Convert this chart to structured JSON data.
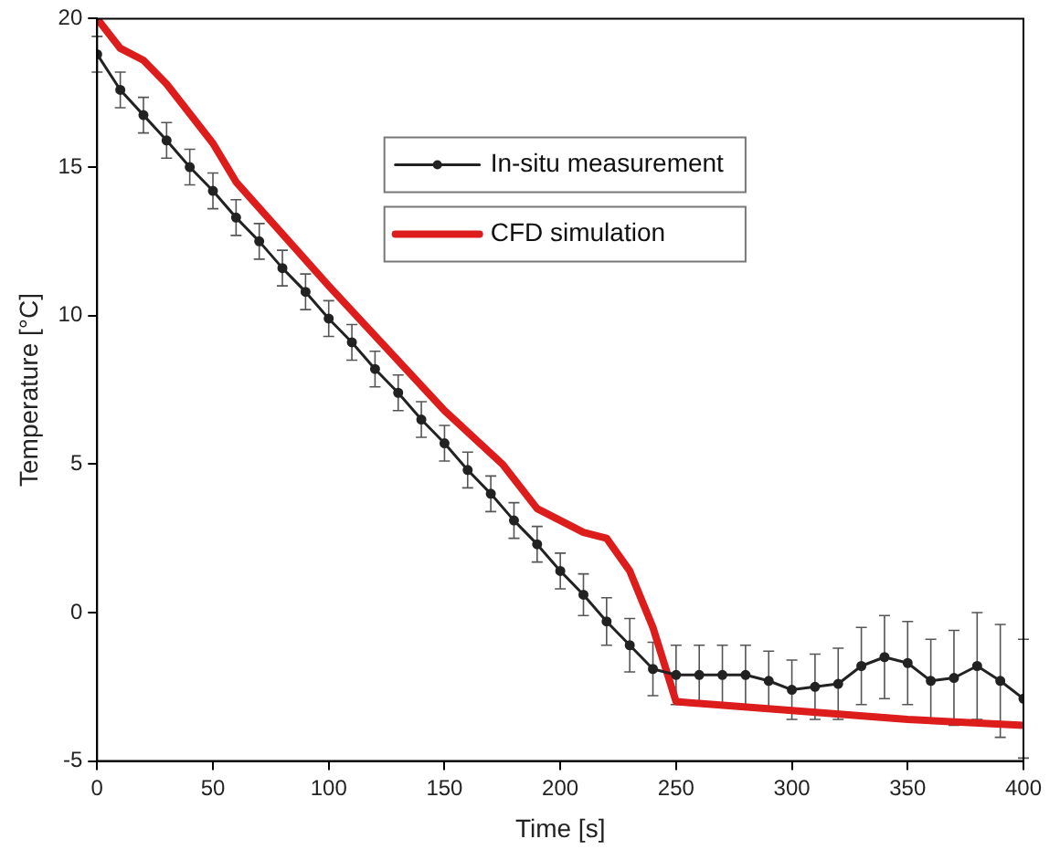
{
  "chart_data": {
    "type": "line",
    "xlabel": "Time [s]",
    "ylabel": "Temperature [°C]",
    "xlim": [
      0,
      400
    ],
    "ylim": [
      -5,
      20
    ],
    "xticks": [
      0,
      50,
      100,
      150,
      200,
      250,
      300,
      350,
      400
    ],
    "yticks": [
      -5,
      0,
      5,
      10,
      15,
      20
    ],
    "grid": false,
    "legend": "top right",
    "series": [
      {
        "name": "In-situ measurement",
        "color": "#222222",
        "marker": "circle",
        "x": [
          0,
          10,
          20,
          30,
          40,
          50,
          60,
          70,
          80,
          90,
          100,
          110,
          120,
          130,
          140,
          150,
          160,
          170,
          180,
          190,
          200,
          210,
          220,
          230,
          240,
          250,
          260,
          270,
          280,
          290,
          300,
          310,
          320,
          330,
          340,
          350,
          360,
          370,
          380,
          390,
          400
        ],
        "values": [
          18.8,
          17.6,
          16.75,
          15.9,
          15.0,
          14.2,
          13.3,
          12.5,
          11.6,
          10.8,
          9.9,
          9.1,
          8.2,
          7.4,
          6.5,
          5.7,
          4.8,
          4.0,
          3.1,
          2.3,
          1.4,
          0.6,
          -0.3,
          -1.1,
          -1.9,
          -2.1,
          -2.1,
          -2.1,
          -2.1,
          -2.3,
          -2.6,
          -2.5,
          -2.4,
          -1.8,
          -1.5,
          -1.7,
          -2.3,
          -2.2,
          -1.8,
          -2.3,
          -2.9
        ],
        "errors": [
          0.6,
          0.6,
          0.6,
          0.6,
          0.6,
          0.6,
          0.6,
          0.6,
          0.6,
          0.6,
          0.6,
          0.6,
          0.6,
          0.6,
          0.6,
          0.6,
          0.6,
          0.6,
          0.6,
          0.6,
          0.6,
          0.7,
          0.8,
          0.9,
          0.9,
          1.0,
          1.0,
          1.0,
          1.0,
          1.0,
          1.0,
          1.1,
          1.2,
          1.3,
          1.4,
          1.4,
          1.4,
          1.6,
          1.8,
          1.9,
          2.0
        ]
      },
      {
        "name": "CFD simulation",
        "color": "#dd1c1c",
        "marker": "none",
        "x": [
          0,
          10,
          20,
          30,
          50,
          60,
          100,
          150,
          175,
          190,
          210,
          220,
          230,
          240,
          246,
          250,
          300,
          350,
          400
        ],
        "values": [
          20,
          19,
          18.6,
          17.8,
          15.8,
          14.5,
          11.0,
          6.8,
          5.0,
          3.5,
          2.7,
          2.5,
          1.4,
          -0.5,
          -2,
          -3,
          -3.3,
          -3.6,
          -3.8
        ]
      }
    ]
  }
}
